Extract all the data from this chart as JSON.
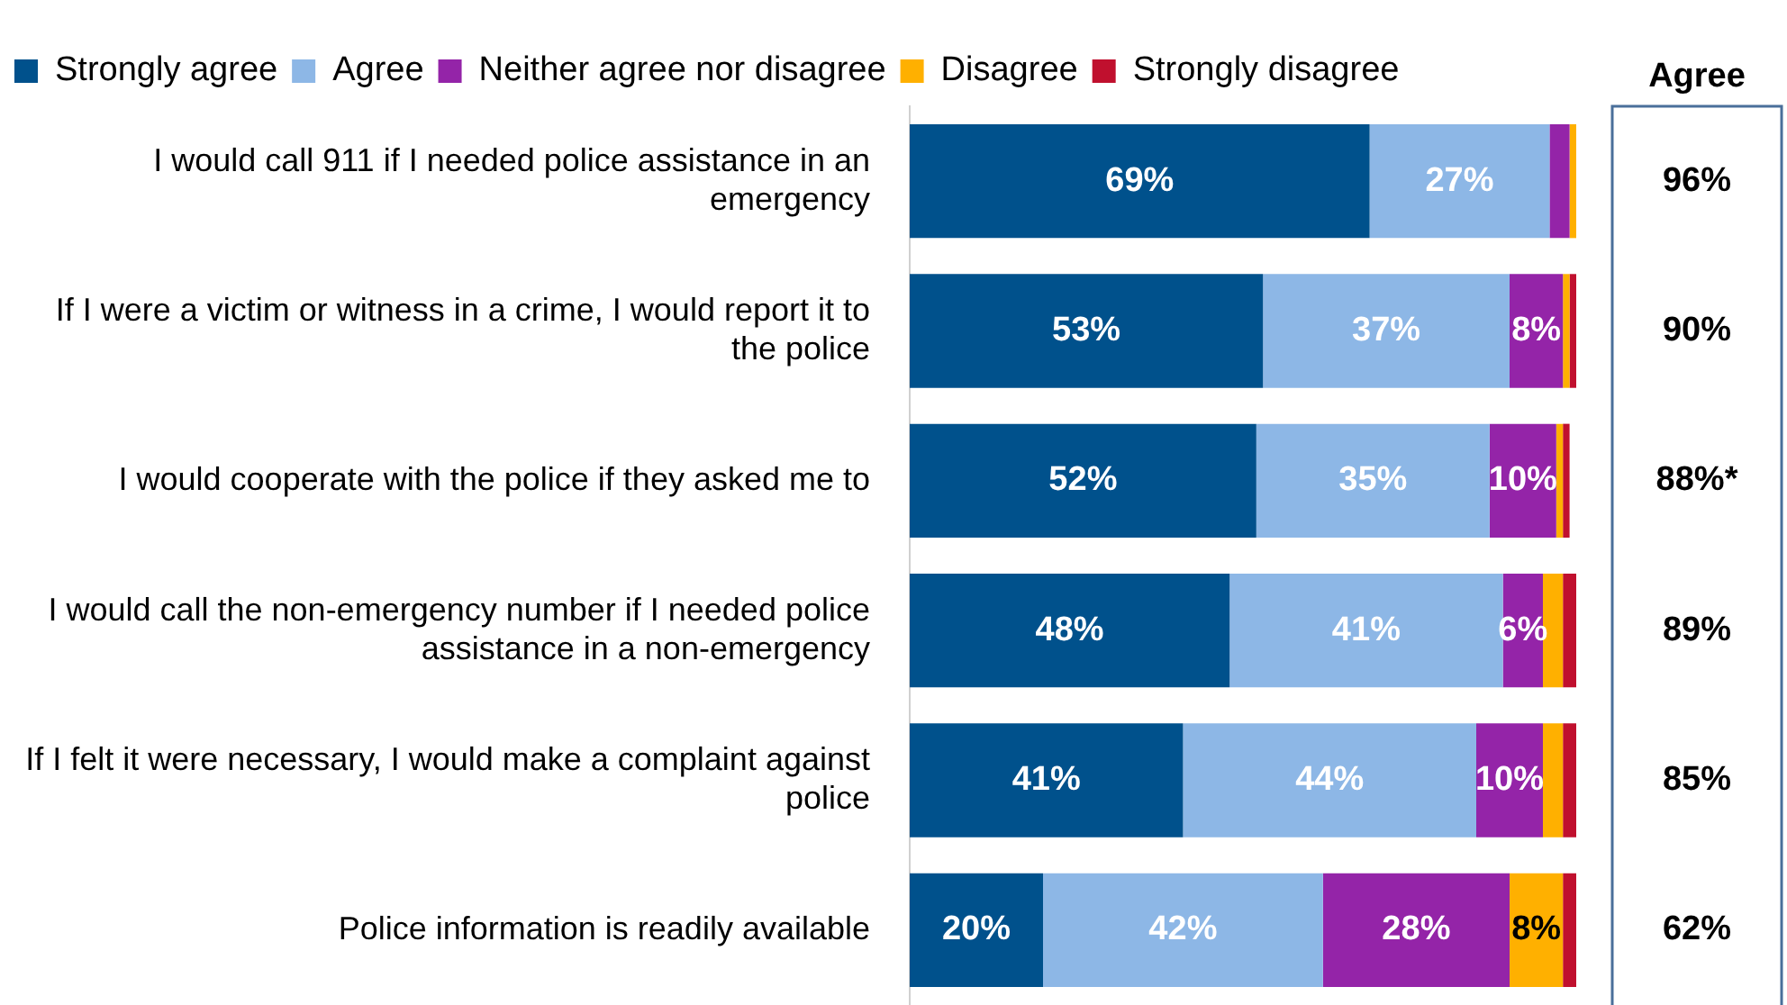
{
  "chart_data": {
    "type": "bar",
    "orientation": "horizontal",
    "stacked": true,
    "categories": [
      "I would call 911 if I needed police assistance in an emergency",
      "If I were a victim or witness in a crime, I would report it to the police",
      "I would cooperate with the police if they asked me to",
      "I would call the non-emergency number if I needed police assistance in a non-emergency",
      "If I felt it were necessary, I would make a complaint against police",
      "Police information is readily available"
    ],
    "series": [
      {
        "name": "Strongly agree",
        "color": "#00518c",
        "values": [
          69,
          53,
          52,
          48,
          41,
          20
        ],
        "value_labels": [
          "69%",
          "53%",
          "52%",
          "48%",
          "41%",
          "20%"
        ]
      },
      {
        "name": "Agree",
        "color": "#8db7e6",
        "values": [
          27,
          37,
          35,
          41,
          44,
          42
        ],
        "value_labels": [
          "27%",
          "37%",
          "35%",
          "41%",
          "44%",
          "42%"
        ]
      },
      {
        "name": "Neither agree nor disagree",
        "color": "#9424a8",
        "values": [
          3,
          8,
          10,
          6,
          10,
          28
        ],
        "value_labels": [
          null,
          "8%",
          "10%",
          "6%",
          "10%",
          "28%"
        ]
      },
      {
        "name": "Disagree",
        "color": "#ffb000",
        "values": [
          1,
          1,
          1,
          3,
          3,
          8
        ],
        "value_labels": [
          null,
          null,
          null,
          null,
          null,
          "8%"
        ]
      },
      {
        "name": "Strongly disagree",
        "color": "#c0102e",
        "values": [
          0,
          1,
          1,
          2,
          2,
          2
        ],
        "value_labels": [
          null,
          null,
          null,
          null,
          null,
          null
        ]
      }
    ],
    "xlim": [
      0,
      100
    ],
    "tick_labels": "y",
    "legend": "top left",
    "annotations": [
      "Agree",
      "96%",
      "90%",
      "88%*",
      "89%",
      "85%",
      "62%"
    ]
  }
}
